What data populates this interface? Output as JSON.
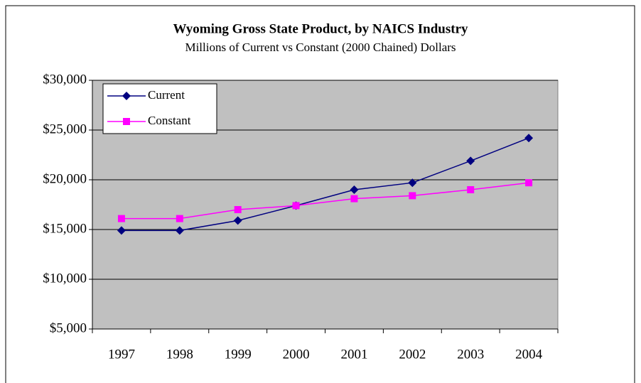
{
  "chart_data": {
    "type": "line",
    "title": "Wyoming Gross State Product, by NAICS Industry",
    "subtitle": "Millions of Current vs Constant (2000 Chained) Dollars",
    "categories": [
      "1997",
      "1998",
      "1999",
      "2000",
      "2001",
      "2002",
      "2003",
      "2004"
    ],
    "series": [
      {
        "name": "Current",
        "color": "#000080",
        "marker": "diamond",
        "values": [
          14900,
          14900,
          15900,
          17400,
          19000,
          19700,
          21900,
          24200
        ]
      },
      {
        "name": "Constant",
        "color": "#ff00ff",
        "marker": "square",
        "values": [
          16100,
          16100,
          17000,
          17400,
          18100,
          18400,
          19000,
          19700
        ]
      }
    ],
    "ylim": [
      5000,
      30000
    ],
    "yticks": [
      {
        "value": 5000,
        "label": "$5,000"
      },
      {
        "value": 10000,
        "label": "$10,000"
      },
      {
        "value": 15000,
        "label": "$15,000"
      },
      {
        "value": 20000,
        "label": "$20,000"
      },
      {
        "value": 25000,
        "label": "$25,000"
      },
      {
        "value": 30000,
        "label": "$30,000"
      }
    ],
    "grid": true,
    "plot_background": "#c0c0c0",
    "legend": "top-left"
  }
}
